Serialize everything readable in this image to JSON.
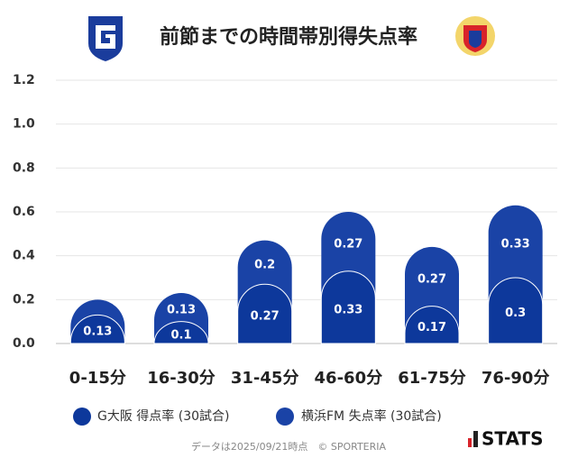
{
  "chart_data": {
    "type": "stacked-bar",
    "title": "前節までの時間帯別得失点率",
    "categories": [
      "0-15分",
      "16-30分",
      "31-45分",
      "46-60分",
      "61-75分",
      "76-90分"
    ],
    "series": [
      {
        "name": "G大阪 得点率 (30試合)",
        "color": "#0d389b",
        "values": [
          0.13,
          0.1,
          0.27,
          0.33,
          0.17,
          0.3
        ]
      },
      {
        "name": "横浜FM 失点率 (30試合)",
        "color": "#1a43a6",
        "values": [
          0.07,
          0.13,
          0.2,
          0.27,
          0.27,
          0.33
        ]
      }
    ],
    "ylim": [
      0,
      1.2
    ],
    "yticks": [
      {
        "value": 0,
        "label": "0.0"
      },
      0.2,
      0.4,
      0.6,
      0.8,
      {
        "value": 1,
        "label": "1.0"
      },
      1.2
    ],
    "grid": true,
    "footer": "データは2025/09/21時点　© SPORTERIA",
    "brand": "STATS"
  }
}
